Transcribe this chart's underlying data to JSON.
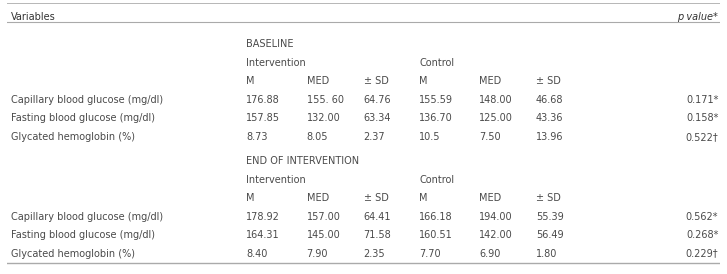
{
  "columns_label": "Variables",
  "p_value_label": "p value*",
  "section1_label": "BASELINE",
  "section1_intervention": "Intervention",
  "section1_control": "Control",
  "section2_label": "END OF INTERVENTION",
  "section2_intervention": "Intervention",
  "section2_control": "Control",
  "baseline_rows": [
    [
      "Capillary blood glucose (mg/dl)",
      "176.88",
      "155. 60",
      "64.76",
      "155.59",
      "148.00",
      "46.68",
      "0.171*"
    ],
    [
      "Fasting blood glucose (mg/dl)",
      "157.85",
      "132.00",
      "63.34",
      "136.70",
      "125.00",
      "43.36",
      "0.158*"
    ],
    [
      "Glycated hemoglobin (%)",
      "8.73",
      "8.05",
      "2.37",
      "10.5",
      "7.50",
      "13.96",
      "0.522†"
    ]
  ],
  "endofintervention_rows": [
    [
      "Capillary blood glucose (mg/dl)",
      "178.92",
      "157.00",
      "64.41",
      "166.18",
      "194.00",
      "55.39",
      "0.562*"
    ],
    [
      "Fasting blood glucose (mg/dl)",
      "164.31",
      "145.00",
      "71.58",
      "160.51",
      "142.00",
      "56.49",
      "0.268*"
    ],
    [
      "Glycated hemoglobin (%)",
      "8.40",
      "7.90",
      "2.35",
      "7.70",
      "6.90",
      "1.80",
      "0.229†"
    ]
  ],
  "bg_color": "#ffffff",
  "text_color": "#4a4a4a",
  "line_color": "#aaaaaa",
  "font_size": 7.0
}
